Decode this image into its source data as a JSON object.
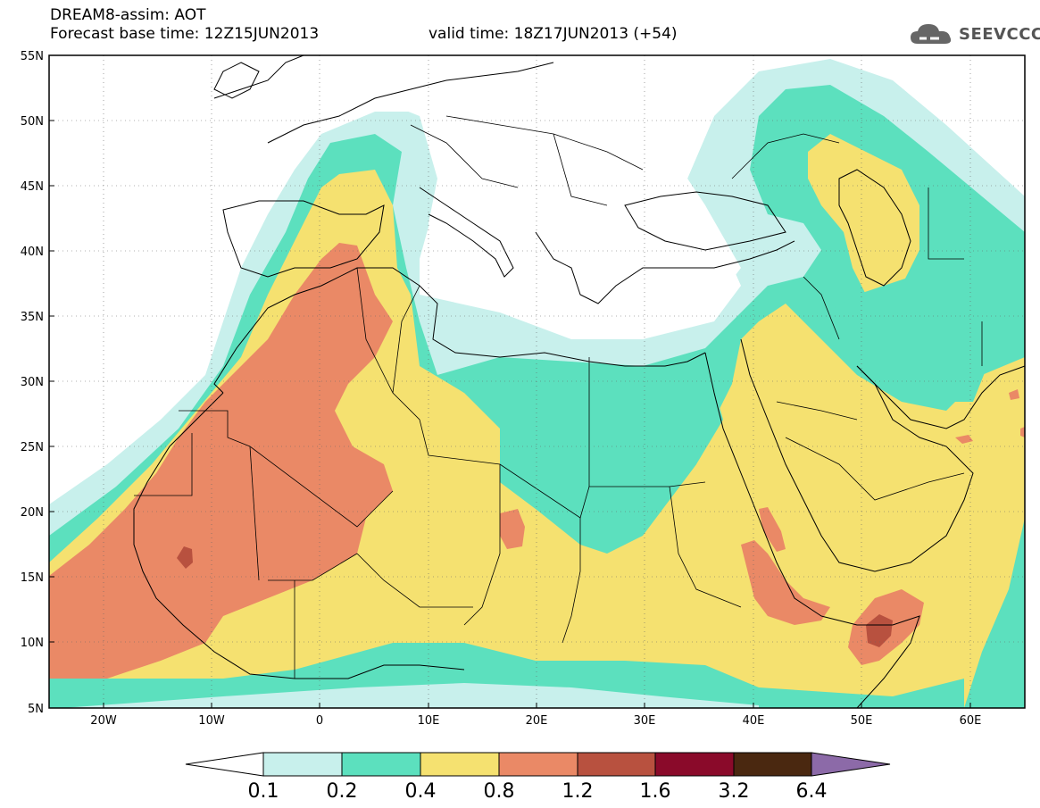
{
  "header": {
    "title": "DREAM8-assim: AOT",
    "base_time": "Forecast base time: 12Z15JUN2013",
    "valid_time": "valid time: 18Z17JUN2013 (+54)",
    "logo_text": "SEEVCCC",
    "logo_icon": "cloud-icon"
  },
  "axes": {
    "lat_labels": [
      "55N",
      "50N",
      "45N",
      "40N",
      "35N",
      "30N",
      "25N",
      "20N",
      "15N",
      "10N",
      "5N"
    ],
    "lon_labels": [
      "20W",
      "10W",
      "0",
      "10E",
      "20E",
      "30E",
      "40E",
      "50E",
      "60E"
    ]
  },
  "legend": {
    "labels": [
      "0.1",
      "0.2",
      "0.4",
      "0.8",
      "1.2",
      "1.6",
      "3.2",
      "6.4"
    ],
    "colors": [
      "#c8f0ec",
      "#5ce0be",
      "#f5e170",
      "#ea8966",
      "#b8513f",
      "#8a0a2a",
      "#4a2810",
      "#8c6aa8"
    ],
    "below_color": "#ffffff"
  },
  "field_colors": {
    "0.1": "#c8f0ec",
    "0.2": "#5ce0be",
    "0.4": "#f5e170",
    "0.8": "#ea8966",
    "1.2": "#b8513f"
  }
}
